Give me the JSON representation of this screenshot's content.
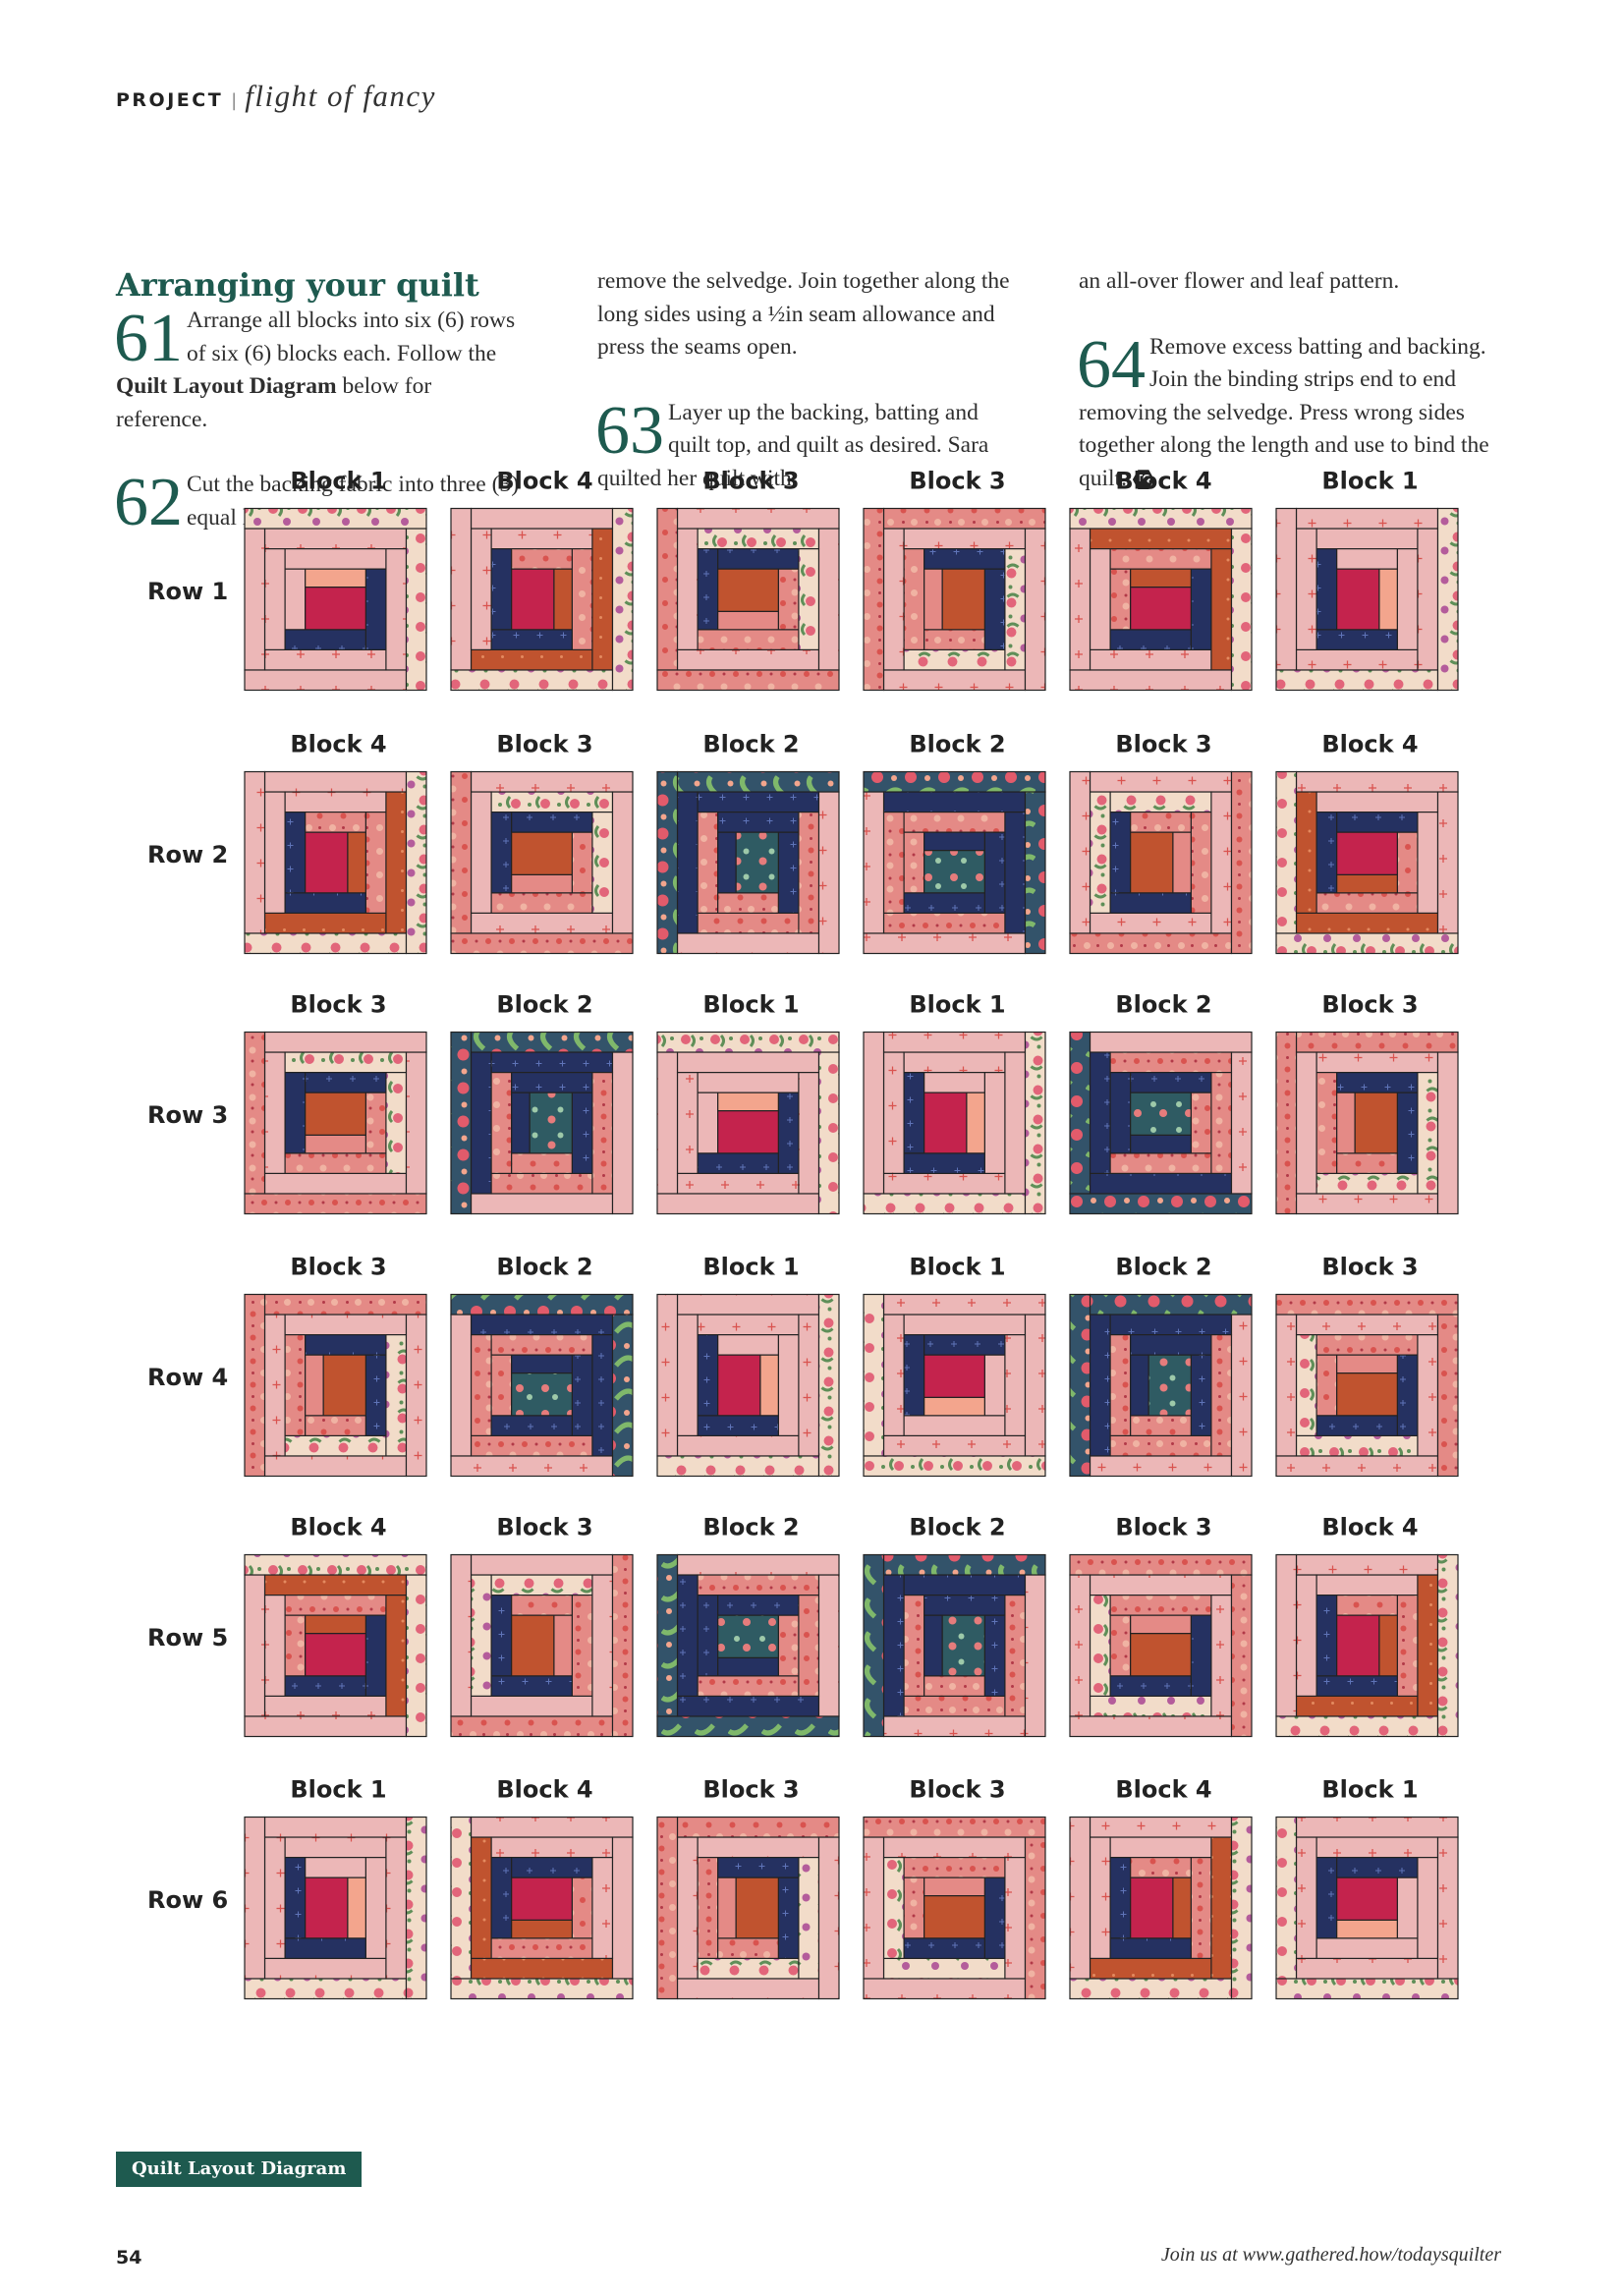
{
  "header": {
    "kicker": "PROJECT",
    "separator": "|",
    "title": "flight of fancy"
  },
  "section_heading": "Arranging your quilt",
  "steps": {
    "s61": {
      "num": "61",
      "text_a": "Arrange all blocks into six (6) rows of six (6) blocks each. Follow the ",
      "bold": "Quilt Layout Diagram",
      "text_b": " below for reference."
    },
    "s62": {
      "num": "62",
      "text": "Cut the backing fabric into three (3) equal lengths and"
    },
    "s62_cont": "remove the selvedge. Join together along the long sides using a ½in seam allowance and press the seams open.",
    "s63": {
      "num": "63",
      "text": "Layer up the backing, batting and quilt top, and quilt as desired. Sara quilted her quilt with"
    },
    "s63_cont": "an all-over flower and leaf pattern.",
    "s64": {
      "num": "64",
      "text": "Remove excess batting and backing. Join the binding strips end to end removing the selvedge. Press wrong sides together along the length and use to bind the quilt."
    },
    "end_icon": "TQ"
  },
  "diagram": {
    "rows": [
      {
        "label": "Row 1",
        "blocks": [
          "Block 1",
          "Block 4",
          "Block 3",
          "Block 3",
          "Block 4",
          "Block 1"
        ]
      },
      {
        "label": "Row 2",
        "blocks": [
          "Block 4",
          "Block 3",
          "Block 2",
          "Block 2",
          "Block 3",
          "Block 4"
        ]
      },
      {
        "label": "Row 3",
        "blocks": [
          "Block 3",
          "Block 2",
          "Block 1",
          "Block 1",
          "Block 2",
          "Block 3"
        ]
      },
      {
        "label": "Row 4",
        "blocks": [
          "Block 3",
          "Block 2",
          "Block 1",
          "Block 1",
          "Block 2",
          "Block 3"
        ]
      },
      {
        "label": "Row 5",
        "blocks": [
          "Block 4",
          "Block 3",
          "Block 2",
          "Block 2",
          "Block 3",
          "Block 4"
        ]
      },
      {
        "label": "Row 6",
        "blocks": [
          "Block 1",
          "Block 4",
          "Block 3",
          "Block 3",
          "Block 4",
          "Block 1"
        ]
      }
    ],
    "caption": "Quilt Layout Diagram",
    "colors": {
      "pink": "#ecb7b7",
      "pink_print": "#e48a86",
      "navy": "#253161",
      "rust": "#c0532f",
      "magenta": "#c4234d",
      "teal": "#2f5b63",
      "floral_light": "#f2dcc9",
      "floral_green": "#5f8f58",
      "floral_dark": "#33536a",
      "salmon": "#f3a58d"
    }
  },
  "footer": {
    "page_number": "54",
    "url_text": "Join us at www.gathered.how/todaysquilter"
  }
}
